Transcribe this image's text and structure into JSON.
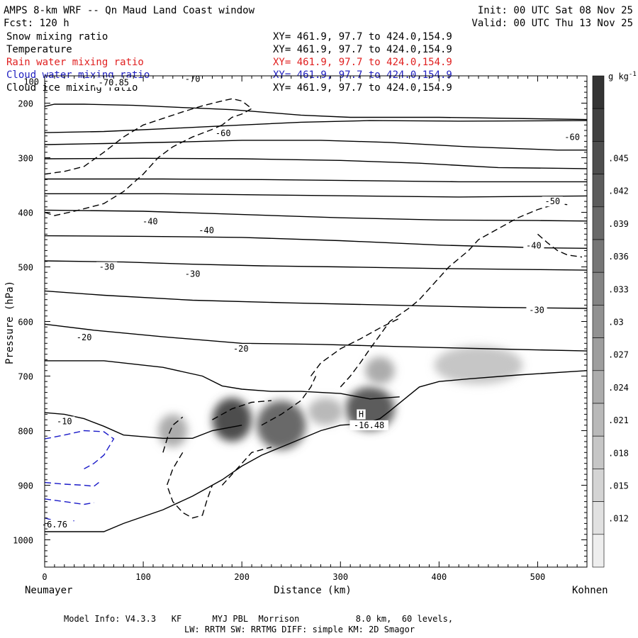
{
  "header": {
    "title": "AMPS 8-km WRF -- Qn Maud Land Coast window",
    "forecast": "Fcst: 120 h",
    "init": "Init: 00 UTC Sat 08 Nov 25",
    "valid": "Valid: 00 UTC Thu 13 Nov 25"
  },
  "fields": [
    {
      "name": "Snow mixing ratio",
      "xy": "XY= 461.9, 97.7 to 424.0,154.9",
      "color": "#000000"
    },
    {
      "name": "Temperature",
      "xy": "XY= 461.9, 97.7 to 424.0,154.9",
      "color": "#000000"
    },
    {
      "name": "Rain water mixing ratio",
      "xy": "XY= 461.9, 97.7 to 424.0,154.9",
      "color": "#e02020"
    },
    {
      "name": "Cloud water mixing ratio",
      "xy": "XY= 461.9, 97.7 to 424.0,154.9",
      "color": "#2020c0"
    },
    {
      "name": "Cloud ice mixing ratio",
      "xy": "XY= 461.9, 97.7 to 424.0,154.9",
      "color": "#000000"
    }
  ],
  "footer": {
    "line1": "Model Info: V4.3.3   KF      MYJ PBL  Morrison           8.0 km,  60 levels,",
    "line2": "LW: RRTM SW: RRTMG   DIFF: simple KM: 2D Smagor"
  },
  "chart_data": {
    "type": "contour",
    "xlabel": "Distance (km)",
    "ylabel": "Pressure (hPa)",
    "xlim": [
      0,
      550
    ],
    "ylim": [
      150,
      1050
    ],
    "x_ticks": [
      0,
      100,
      200,
      300,
      400,
      500
    ],
    "y_ticks": [
      200,
      300,
      400,
      500,
      600,
      700,
      800,
      900,
      1000
    ],
    "x_left_label": "Neumayer",
    "x_right_label": "Kohnen",
    "colorbar": {
      "units": "g kg",
      "units_exp": "-1",
      "ticks": [
        ".012",
        ".015",
        ".018",
        ".021",
        ".024",
        ".027",
        ".03",
        ".033",
        ".036",
        ".039",
        ".042",
        ".045"
      ],
      "tick_values": [
        0.012,
        0.015,
        0.018,
        0.021,
        0.024,
        0.027,
        0.03,
        0.033,
        0.036,
        0.039,
        0.042,
        0.045
      ],
      "range": [
        0.0075,
        0.0525
      ]
    },
    "temperature_labels": [
      {
        "text": "-70",
        "x": 150,
        "p": 160
      },
      {
        "text": "-70.85",
        "x": 70,
        "p": 166
      },
      {
        "text": "-60",
        "x": 181,
        "p": 259
      },
      {
        "text": "-60",
        "x": 535,
        "p": 266
      },
      {
        "text": "-50",
        "x": 515,
        "p": 384
      },
      {
        "text": "-40",
        "x": 107,
        "p": 421
      },
      {
        "text": "-40",
        "x": 164,
        "p": 437
      },
      {
        "text": "-40",
        "x": 496,
        "p": 465
      },
      {
        "text": "-30",
        "x": 63,
        "p": 504
      },
      {
        "text": "-30",
        "x": 150,
        "p": 517
      },
      {
        "text": "-30",
        "x": 499,
        "p": 583
      },
      {
        "text": "-20",
        "x": 40,
        "p": 633
      },
      {
        "text": "-20",
        "x": 199,
        "p": 654
      },
      {
        "text": "-10",
        "x": 20,
        "p": 787
      },
      {
        "text": "-16.48",
        "x": 329,
        "p": 794
      },
      {
        "text": "H",
        "x": 321,
        "p": 774
      },
      {
        "text": "-6.76",
        "x": 10,
        "p": 976
      }
    ],
    "temperature_isotherms": [
      {
        "points": [
          [
            0,
            206
          ],
          [
            10,
            202
          ],
          [
            40,
            202
          ],
          [
            90,
            204
          ],
          [
            140,
            208
          ],
          [
            190,
            212
          ],
          [
            260,
            222
          ],
          [
            310,
            226
          ],
          [
            400,
            226
          ],
          [
            550,
            230
          ]
        ]
      },
      {
        "points": [
          [
            0,
            254
          ],
          [
            60,
            252
          ],
          [
            120,
            247
          ],
          [
            200,
            240
          ],
          [
            260,
            235
          ],
          [
            330,
            232
          ],
          [
            420,
            233
          ],
          [
            550,
            232
          ]
        ]
      },
      {
        "points": [
          [
            0,
            276
          ],
          [
            60,
            274
          ],
          [
            140,
            271
          ],
          [
            200,
            268
          ],
          [
            280,
            268
          ],
          [
            350,
            272
          ],
          [
            430,
            280
          ],
          [
            520,
            286
          ],
          [
            550,
            286
          ]
        ]
      },
      {
        "points": [
          [
            0,
            302
          ],
          [
            100,
            301
          ],
          [
            200,
            302
          ],
          [
            300,
            305
          ],
          [
            380,
            310
          ],
          [
            460,
            318
          ],
          [
            550,
            320
          ]
        ]
      },
      {
        "points": [
          [
            0,
            339
          ],
          [
            120,
            339
          ],
          [
            220,
            340
          ],
          [
            320,
            342
          ],
          [
            420,
            344
          ],
          [
            550,
            344
          ]
        ]
      },
      {
        "points": [
          [
            0,
            366
          ],
          [
            120,
            366
          ],
          [
            220,
            368
          ],
          [
            320,
            370
          ],
          [
            420,
            372
          ],
          [
            550,
            370
          ]
        ]
      },
      {
        "points": [
          [
            0,
            396
          ],
          [
            100,
            398
          ],
          [
            200,
            404
          ],
          [
            300,
            410
          ],
          [
            400,
            414
          ],
          [
            500,
            415
          ],
          [
            550,
            416
          ]
        ]
      },
      {
        "points": [
          [
            0,
            443
          ],
          [
            100,
            444
          ],
          [
            200,
            446
          ],
          [
            300,
            452
          ],
          [
            400,
            460
          ],
          [
            500,
            465
          ],
          [
            550,
            466
          ]
        ]
      },
      {
        "points": [
          [
            0,
            489
          ],
          [
            80,
            491
          ],
          [
            150,
            495
          ],
          [
            220,
            498
          ],
          [
            300,
            500
          ],
          [
            400,
            503
          ],
          [
            500,
            505
          ],
          [
            550,
            506
          ]
        ]
      },
      {
        "points": [
          [
            0,
            544
          ],
          [
            60,
            552
          ],
          [
            150,
            561
          ],
          [
            250,
            566
          ],
          [
            350,
            570
          ],
          [
            450,
            574
          ],
          [
            550,
            576
          ]
        ]
      },
      {
        "points": [
          [
            0,
            605
          ],
          [
            50,
            616
          ],
          [
            120,
            628
          ],
          [
            200,
            640
          ],
          [
            280,
            642
          ],
          [
            360,
            646
          ],
          [
            450,
            650
          ],
          [
            550,
            654
          ]
        ]
      },
      {
        "points": [
          [
            0,
            672
          ],
          [
            60,
            672
          ],
          [
            120,
            684
          ],
          [
            160,
            700
          ],
          [
            180,
            718
          ],
          [
            200,
            724
          ],
          [
            230,
            728
          ],
          [
            260,
            728
          ],
          [
            300,
            732
          ],
          [
            330,
            742
          ],
          [
            360,
            738
          ]
        ]
      },
      {
        "points": [
          [
            0,
            767
          ],
          [
            20,
            770
          ],
          [
            40,
            778
          ],
          [
            60,
            792
          ],
          [
            80,
            808
          ],
          [
            120,
            814
          ],
          [
            150,
            814
          ],
          [
            170,
            800
          ],
          [
            200,
            790
          ]
        ]
      }
    ],
    "cloud_ice_dashed": [
      {
        "points": [
          [
            0,
            330
          ],
          [
            20,
            325
          ],
          [
            40,
            316
          ],
          [
            60,
            290
          ],
          [
            80,
            262
          ],
          [
            100,
            240
          ],
          [
            120,
            228
          ],
          [
            140,
            216
          ],
          [
            160,
            205
          ],
          [
            180,
            196
          ],
          [
            190,
            192
          ],
          [
            200,
            196
          ],
          [
            210,
            210
          ],
          [
            200,
            220
          ],
          [
            190,
            226
          ],
          [
            180,
            240
          ]
        ]
      },
      {
        "points": [
          [
            0,
            400
          ],
          [
            10,
            406
          ],
          [
            30,
            398
          ],
          [
            60,
            384
          ],
          [
            80,
            362
          ],
          [
            100,
            330
          ],
          [
            115,
            300
          ],
          [
            130,
            280
          ],
          [
            150,
            262
          ],
          [
            170,
            248
          ],
          [
            180,
            240
          ]
        ]
      },
      {
        "points": [
          [
            140,
            840
          ],
          [
            130,
            870
          ],
          [
            124,
            900
          ],
          [
            130,
            930
          ],
          [
            140,
            950
          ],
          [
            150,
            960
          ],
          [
            160,
            955
          ],
          [
            165,
            925
          ],
          [
            170,
            900
          ]
        ]
      },
      {
        "points": [
          [
            120,
            840
          ],
          [
            125,
            810
          ],
          [
            130,
            790
          ],
          [
            140,
            775
          ]
        ]
      },
      {
        "points": [
          [
            170,
            780
          ],
          [
            190,
            760
          ],
          [
            210,
            748
          ],
          [
            230,
            745
          ]
        ]
      },
      {
        "points": [
          [
            180,
            900
          ],
          [
            190,
            880
          ],
          [
            200,
            860
          ],
          [
            210,
            840
          ],
          [
            230,
            830
          ]
        ]
      },
      {
        "points": [
          [
            220,
            790
          ],
          [
            240,
            770
          ],
          [
            260,
            745
          ],
          [
            270,
            720
          ],
          [
            275,
            700
          ]
        ]
      },
      {
        "points": [
          [
            300,
            720
          ],
          [
            310,
            700
          ],
          [
            320,
            676
          ],
          [
            330,
            650
          ],
          [
            340,
            625
          ],
          [
            350,
            600
          ],
          [
            370,
            575
          ],
          [
            380,
            560
          ],
          [
            390,
            540
          ],
          [
            400,
            520
          ],
          [
            410,
            500
          ],
          [
            430,
            470
          ],
          [
            440,
            450
          ],
          [
            460,
            430
          ],
          [
            480,
            410
          ],
          [
            500,
            395
          ],
          [
            520,
            384
          ],
          [
            530,
            386
          ]
        ]
      },
      {
        "points": [
          [
            270,
            700
          ],
          [
            280,
            676
          ],
          [
            300,
            650
          ],
          [
            320,
            632
          ],
          [
            340,
            612
          ],
          [
            360,
            594
          ]
        ]
      },
      {
        "points": [
          [
            500,
            440
          ],
          [
            510,
            456
          ],
          [
            520,
            470
          ],
          [
            530,
            478
          ],
          [
            545,
            482
          ]
        ]
      }
    ],
    "cloud_water_dashed": [
      {
        "points": [
          [
            0,
            815
          ],
          [
            20,
            808
          ],
          [
            40,
            800
          ],
          [
            60,
            802
          ],
          [
            70,
            815
          ],
          [
            60,
            845
          ],
          [
            50,
            860
          ],
          [
            40,
            870
          ]
        ]
      },
      {
        "points": [
          [
            0,
            895
          ],
          [
            20,
            898
          ],
          [
            40,
            900
          ],
          [
            50,
            902
          ],
          [
            55,
            895
          ]
        ]
      },
      {
        "points": [
          [
            0,
            925
          ],
          [
            20,
            930
          ],
          [
            40,
            935
          ],
          [
            50,
            932
          ]
        ]
      },
      {
        "points": [
          [
            0,
            960
          ],
          [
            10,
            965
          ],
          [
            20,
            970
          ],
          [
            30,
            965
          ]
        ]
      }
    ],
    "snow_shading": [
      {
        "x": 190,
        "p": 780,
        "rx": 20,
        "rp": 40,
        "value": 0.045
      },
      {
        "x": 240,
        "p": 790,
        "rx": 25,
        "rp": 45,
        "value": 0.039
      },
      {
        "x": 330,
        "p": 760,
        "rx": 25,
        "rp": 40,
        "value": 0.042
      },
      {
        "x": 130,
        "p": 800,
        "rx": 15,
        "rp": 30,
        "value": 0.024
      },
      {
        "x": 440,
        "p": 680,
        "rx": 45,
        "rp": 35,
        "value": 0.018
      },
      {
        "x": 340,
        "p": 690,
        "rx": 15,
        "rp": 25,
        "value": 0.024
      },
      {
        "x": 285,
        "p": 765,
        "rx": 18,
        "rp": 25,
        "value": 0.021
      }
    ],
    "terrain": {
      "points": [
        [
          0,
          985
        ],
        [
          60,
          985
        ],
        [
          80,
          970
        ],
        [
          120,
          945
        ],
        [
          150,
          920
        ],
        [
          180,
          890
        ],
        [
          200,
          865
        ],
        [
          220,
          845
        ],
        [
          240,
          830
        ],
        [
          260,
          815
        ],
        [
          280,
          800
        ],
        [
          300,
          790
        ],
        [
          315,
          788
        ],
        [
          330,
          784
        ],
        [
          340,
          778
        ],
        [
          350,
          764
        ],
        [
          365,
          742
        ],
        [
          380,
          720
        ],
        [
          400,
          710
        ],
        [
          430,
          705
        ],
        [
          480,
          698
        ],
        [
          550,
          690
        ]
      ]
    }
  }
}
